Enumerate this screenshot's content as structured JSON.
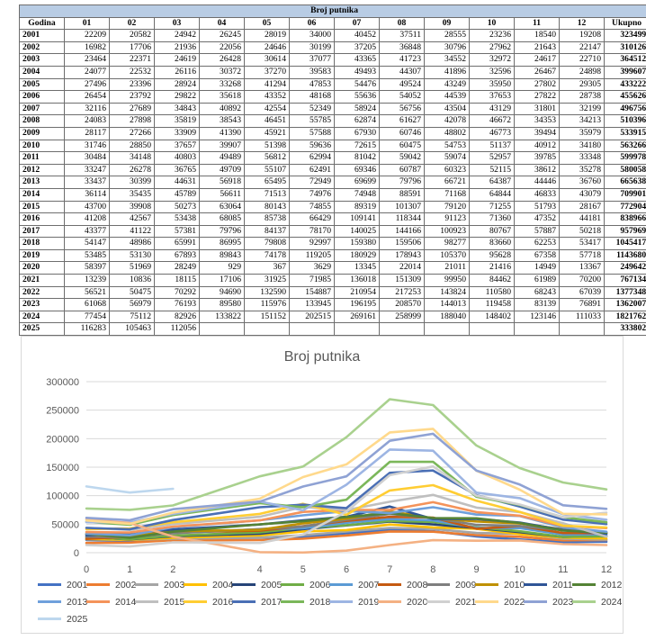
{
  "table": {
    "title": "Broj putnika",
    "headers": [
      "Godina",
      "01",
      "02",
      "03",
      "04",
      "05",
      "06",
      "07",
      "08",
      "09",
      "10",
      "11",
      "12",
      "Ukupno"
    ],
    "rows": [
      [
        "2001",
        "22209",
        "20582",
        "24942",
        "26245",
        "28019",
        "34000",
        "40452",
        "37511",
        "28555",
        "23236",
        "18540",
        "19208",
        "323499"
      ],
      [
        "2002",
        "16982",
        "17706",
        "21936",
        "22056",
        "24646",
        "30199",
        "37205",
        "36848",
        "30796",
        "27962",
        "21643",
        "22147",
        "310126"
      ],
      [
        "2003",
        "23464",
        "22371",
        "24619",
        "26428",
        "30614",
        "37077",
        "43365",
        "41723",
        "34552",
        "32972",
        "24617",
        "22710",
        "364512"
      ],
      [
        "2004",
        "24077",
        "22532",
        "26116",
        "30372",
        "37270",
        "39583",
        "49493",
        "44307",
        "41896",
        "32596",
        "26467",
        "24898",
        "399607"
      ],
      [
        "2005",
        "27496",
        "23396",
        "28924",
        "33268",
        "41294",
        "47853",
        "54476",
        "49524",
        "43249",
        "35950",
        "27802",
        "29305",
        "433222"
      ],
      [
        "2006",
        "26454",
        "23792",
        "29822",
        "35618",
        "43352",
        "48168",
        "55636",
        "54052",
        "44539",
        "37653",
        "27822",
        "28738",
        "455626"
      ],
      [
        "2007",
        "32116",
        "27689",
        "34843",
        "40892",
        "42554",
        "52349",
        "58924",
        "56756",
        "43504",
        "43129",
        "31801",
        "32199",
        "496756"
      ],
      [
        "2008",
        "24083",
        "27898",
        "35819",
        "38543",
        "46451",
        "55785",
        "62874",
        "61627",
        "42078",
        "46672",
        "34353",
        "34213",
        "510396"
      ],
      [
        "2009",
        "28117",
        "27266",
        "33909",
        "41390",
        "45921",
        "57588",
        "67930",
        "60746",
        "48802",
        "46773",
        "39494",
        "35979",
        "533915"
      ],
      [
        "2010",
        "31746",
        "28850",
        "37657",
        "39907",
        "51398",
        "59636",
        "72615",
        "60475",
        "54753",
        "51137",
        "40912",
        "34180",
        "563266"
      ],
      [
        "2011",
        "30484",
        "34148",
        "40803",
        "49489",
        "56812",
        "62994",
        "81042",
        "59042",
        "59074",
        "52957",
        "39785",
        "33348",
        "599978"
      ],
      [
        "2012",
        "33247",
        "26278",
        "36765",
        "49709",
        "55107",
        "62491",
        "69346",
        "60787",
        "60323",
        "52115",
        "38612",
        "35278",
        "580058"
      ],
      [
        "2013",
        "33437",
        "30399",
        "44631",
        "56918",
        "65495",
        "72949",
        "69699",
        "79796",
        "66721",
        "64387",
        "44446",
        "36760",
        "665638"
      ],
      [
        "2014",
        "36114",
        "35435",
        "45789",
        "56611",
        "71513",
        "74976",
        "74948",
        "88591",
        "71168",
        "64844",
        "46833",
        "43079",
        "709901"
      ],
      [
        "2015",
        "43700",
        "39908",
        "50273",
        "63064",
        "80143",
        "74855",
        "89319",
        "101307",
        "79120",
        "71255",
        "51793",
        "28167",
        "772904"
      ],
      [
        "2016",
        "41208",
        "42567",
        "53438",
        "68085",
        "85738",
        "66429",
        "109141",
        "118344",
        "91123",
        "71360",
        "47352",
        "44181",
        "838966"
      ],
      [
        "2017",
        "43377",
        "41122",
        "57381",
        "79796",
        "84137",
        "78170",
        "140025",
        "144166",
        "100923",
        "80767",
        "57887",
        "50218",
        "957969"
      ],
      [
        "2018",
        "54147",
        "48986",
        "65991",
        "86995",
        "79808",
        "92997",
        "159380",
        "159506",
        "98277",
        "83660",
        "62253",
        "53417",
        "1045417"
      ],
      [
        "2019",
        "53485",
        "53130",
        "67893",
        "89843",
        "74178",
        "119205",
        "180929",
        "178943",
        "105370",
        "95628",
        "67358",
        "57718",
        "1143680"
      ],
      [
        "2020",
        "58397",
        "51969",
        "28249",
        "929",
        "367",
        "3629",
        "13345",
        "22014",
        "21011",
        "21416",
        "14949",
        "13367",
        "249642"
      ],
      [
        "2021",
        "13239",
        "10836",
        "18115",
        "17106",
        "31925",
        "71985",
        "136018",
        "151309",
        "99950",
        "84462",
        "61989",
        "70200",
        "767134"
      ],
      [
        "2022",
        "56521",
        "50475",
        "70292",
        "94690",
        "132590",
        "154887",
        "210954",
        "217253",
        "143824",
        "110580",
        "68243",
        "67039",
        "1377348"
      ],
      [
        "2023",
        "61068",
        "56979",
        "76193",
        "89580",
        "115976",
        "133945",
        "196195",
        "208570",
        "144013",
        "119458",
        "83139",
        "76891",
        "1362007"
      ],
      [
        "2024",
        "77454",
        "75112",
        "82926",
        "133822",
        "151152",
        "202515",
        "269161",
        "258999",
        "188040",
        "148402",
        "123146",
        "111033",
        "1821762"
      ],
      [
        "2025",
        "116283",
        "105463",
        "112056",
        "",
        "",
        "",
        "",
        "",
        "",
        "",
        "",
        "",
        "333802"
      ]
    ]
  },
  "chart_data": {
    "type": "line",
    "title": "Broj putnika",
    "x": [
      0,
      1,
      2,
      4,
      5,
      6,
      7,
      8,
      9,
      10,
      11,
      12
    ],
    "x_tick_labels": [
      "0",
      "1",
      "2",
      "4",
      "5",
      "6",
      "7",
      "8",
      "9",
      "10",
      "11",
      "12"
    ],
    "ylim": [
      0,
      300000
    ],
    "y_ticks": [
      0,
      50000,
      100000,
      150000,
      200000,
      250000,
      300000
    ],
    "y_tick_labels": [
      "0",
      "50000",
      "100000",
      "150000",
      "200000",
      "250000",
      "300000"
    ],
    "grid": "horizontal",
    "legend_position": "bottom",
    "series": [
      {
        "name": "2001",
        "color": "#4472C4",
        "values": [
          22209,
          20582,
          24942,
          26245,
          28019,
          34000,
          40452,
          37511,
          28555,
          23236,
          18540,
          19208
        ]
      },
      {
        "name": "2002",
        "color": "#ED7D31",
        "values": [
          16982,
          17706,
          21936,
          22056,
          24646,
          30199,
          37205,
          36848,
          30796,
          27962,
          21643,
          22147
        ]
      },
      {
        "name": "2003",
        "color": "#A5A5A5",
        "values": [
          23464,
          22371,
          24619,
          26428,
          30614,
          37077,
          43365,
          41723,
          34552,
          32972,
          24617,
          22710
        ]
      },
      {
        "name": "2004",
        "color": "#FFC000",
        "values": [
          24077,
          22532,
          26116,
          30372,
          37270,
          39583,
          49493,
          44307,
          41896,
          32596,
          26467,
          24898
        ]
      },
      {
        "name": "2005",
        "color": "#264478",
        "values": [
          27496,
          23396,
          28924,
          33268,
          41294,
          47853,
          54476,
          49524,
          43249,
          35950,
          27802,
          29305
        ]
      },
      {
        "name": "2006",
        "color": "#70AD47",
        "values": [
          26454,
          23792,
          29822,
          35618,
          43352,
          48168,
          55636,
          54052,
          44539,
          37653,
          27822,
          28738
        ]
      },
      {
        "name": "2007",
        "color": "#5B9BD5",
        "values": [
          32116,
          27689,
          34843,
          40892,
          42554,
          52349,
          58924,
          56756,
          43504,
          43129,
          31801,
          32199
        ]
      },
      {
        "name": "2008",
        "color": "#C55A11",
        "values": [
          24083,
          27898,
          35819,
          38543,
          46451,
          55785,
          62874,
          61627,
          42078,
          46672,
          34353,
          34213
        ]
      },
      {
        "name": "2009",
        "color": "#7F7F7F",
        "values": [
          28117,
          27266,
          33909,
          41390,
          45921,
          57588,
          67930,
          60746,
          48802,
          46773,
          39494,
          35979
        ]
      },
      {
        "name": "2010",
        "color": "#BF9000",
        "values": [
          31746,
          28850,
          37657,
          39907,
          51398,
          59636,
          72615,
          60475,
          54753,
          51137,
          40912,
          34180
        ]
      },
      {
        "name": "2011",
        "color": "#2F5597",
        "values": [
          30484,
          34148,
          40803,
          49489,
          56812,
          62994,
          81042,
          59042,
          59074,
          52957,
          39785,
          33348
        ]
      },
      {
        "name": "2012",
        "color": "#548235",
        "values": [
          33247,
          26278,
          36765,
          49709,
          55107,
          62491,
          69346,
          60787,
          60323,
          52115,
          38612,
          35278
        ]
      },
      {
        "name": "2013",
        "color": "#6FA0DC",
        "values": [
          33437,
          30399,
          44631,
          56918,
          65495,
          72949,
          69699,
          79796,
          66721,
          64387,
          44446,
          36760
        ]
      },
      {
        "name": "2014",
        "color": "#F4935A",
        "values": [
          36114,
          35435,
          45789,
          56611,
          71513,
          74976,
          74948,
          88591,
          71168,
          64844,
          46833,
          43079
        ]
      },
      {
        "name": "2015",
        "color": "#BFBFBF",
        "values": [
          43700,
          39908,
          50273,
          63064,
          80143,
          74855,
          89319,
          101307,
          79120,
          71255,
          51793,
          28167
        ]
      },
      {
        "name": "2016",
        "color": "#FFCD33",
        "values": [
          41208,
          42567,
          53438,
          68085,
          85738,
          66429,
          109141,
          118344,
          91123,
          71360,
          47352,
          44181
        ]
      },
      {
        "name": "2017",
        "color": "#4A6FB5",
        "values": [
          43377,
          41122,
          57381,
          79796,
          84137,
          78170,
          140025,
          144166,
          100923,
          80767,
          57887,
          50218
        ]
      },
      {
        "name": "2018",
        "color": "#7BB75A",
        "values": [
          54147,
          48986,
          65991,
          86995,
          79808,
          92997,
          159380,
          159506,
          98277,
          83660,
          62253,
          53417
        ]
      },
      {
        "name": "2019",
        "color": "#9DB5E3",
        "values": [
          53485,
          53130,
          67893,
          89843,
          74178,
          119205,
          180929,
          178943,
          105370,
          95628,
          67358,
          57718
        ]
      },
      {
        "name": "2020",
        "color": "#F4B183",
        "values": [
          58397,
          51969,
          28249,
          929,
          367,
          3629,
          13345,
          22014,
          21011,
          21416,
          14949,
          13367
        ]
      },
      {
        "name": "2021",
        "color": "#D0D0D0",
        "values": [
          13239,
          10836,
          18115,
          17106,
          31925,
          71985,
          136018,
          151309,
          99950,
          84462,
          61989,
          70200
        ]
      },
      {
        "name": "2022",
        "color": "#FFD98C",
        "values": [
          56521,
          50475,
          70292,
          94690,
          132590,
          154887,
          210954,
          217253,
          143824,
          110580,
          68243,
          67039
        ]
      },
      {
        "name": "2023",
        "color": "#8FA2D4",
        "values": [
          61068,
          56979,
          76193,
          89580,
          115976,
          133945,
          196195,
          208570,
          144013,
          119458,
          83139,
          76891
        ]
      },
      {
        "name": "2024",
        "color": "#A9D18E",
        "values": [
          77454,
          75112,
          82926,
          133822,
          151152,
          202515,
          269161,
          258999,
          188040,
          148402,
          123146,
          111033
        ]
      },
      {
        "name": "2025",
        "color": "#BDD7EE",
        "values": [
          116283,
          105463,
          112056,
          null,
          null,
          null,
          null,
          null,
          null,
          null,
          null,
          null
        ]
      }
    ]
  }
}
